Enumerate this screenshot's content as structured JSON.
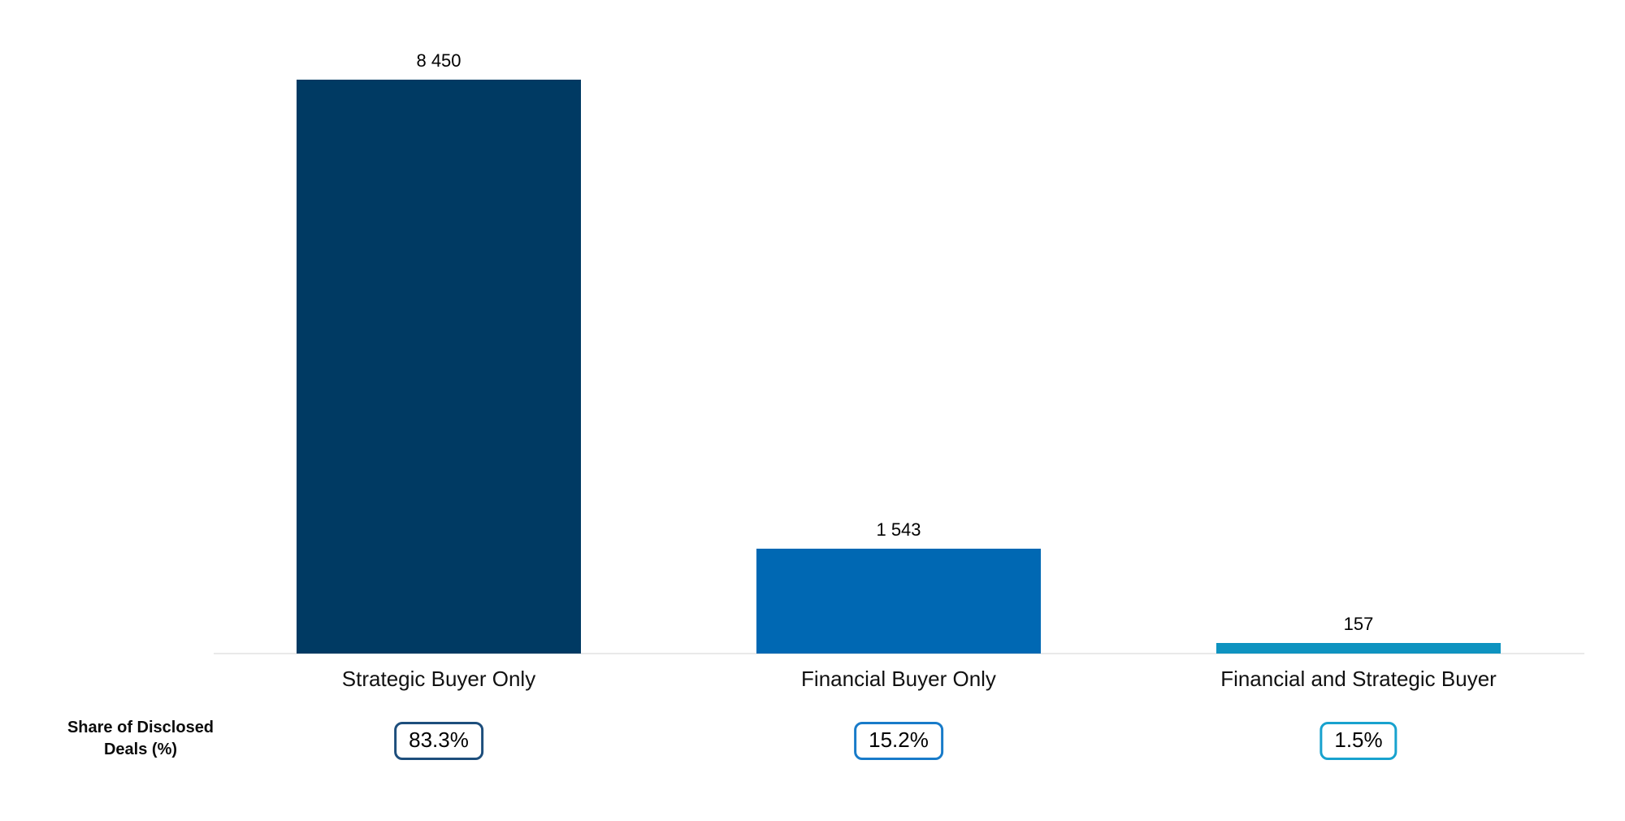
{
  "chart_data": {
    "type": "bar",
    "title": "",
    "categories": [
      "Strategic Buyer Only",
      "Financial Buyer Only",
      "Financial and Strategic Buyer"
    ],
    "values": [
      8450,
      1543,
      157
    ],
    "value_labels": [
      "8 450",
      "1 543",
      "157"
    ],
    "share_labels": [
      "83.3%",
      "15.2%",
      "1.5%"
    ],
    "bar_colors": [
      "#003a63",
      "#0068b3",
      "#0e93c0"
    ],
    "badge_border_colors": [
      "#1d4e7c",
      "#187bc9",
      "#18a2ce"
    ],
    "axis_line_color": "#e9e9e9",
    "row_label": "Share of Disclosed Deals (%)",
    "row_label_lines": [
      "Share of Disclosed",
      "Deals (%)"
    ],
    "xlabel": "",
    "ylabel": "",
    "ylim": [
      0,
      8450
    ],
    "grid": false,
    "legend": false
  }
}
